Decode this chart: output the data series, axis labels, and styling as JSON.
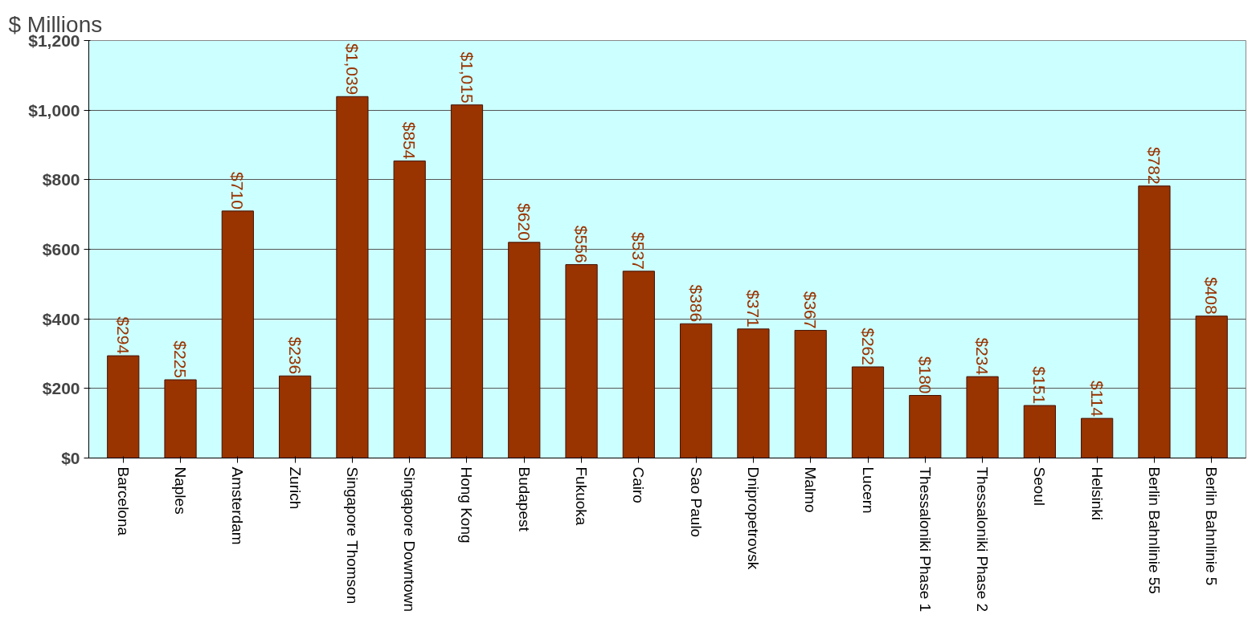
{
  "chart_data": {
    "type": "bar",
    "ylabel": "$ Millions",
    "categories": [
      "Barcelona",
      "Naples",
      "Amsterdam",
      "Zurich",
      "Singapore Thomson",
      "Singapore Downtown",
      "Hong Kong",
      "Budapest",
      "Fukuoka",
      "Cairo",
      "Sao Paulo",
      "Dnipropetrovsk",
      "Malmo",
      "Lucern",
      "Thessaloniki Phase 1",
      "Thessaloniki Phase 2",
      "Seoul",
      "Helsinki",
      "Berlin Bahnlinie 55",
      "Berlin Bahnlinie 5"
    ],
    "values": [
      294,
      225,
      710,
      236,
      1039,
      854,
      1015,
      620,
      556,
      537,
      386,
      371,
      367,
      262,
      180,
      234,
      151,
      114,
      782,
      408
    ],
    "value_labels": [
      "$294",
      "$225",
      "$710",
      "$236",
      "$1,039",
      "$854",
      "$1,015",
      "$620",
      "$556",
      "$537",
      "$386",
      "$371",
      "$367",
      "$262",
      "$180",
      "$234",
      "$151",
      "$114",
      "$782",
      "$408"
    ],
    "color": "#993300",
    "ylim": [
      0,
      1200
    ],
    "yticks": [
      {
        "value": 0,
        "label": "$0"
      },
      {
        "value": 200,
        "label": "$200"
      },
      {
        "value": 400,
        "label": "$400"
      },
      {
        "value": 600,
        "label": "$600"
      },
      {
        "value": 800,
        "label": "$800"
      },
      {
        "value": 1000,
        "label": "$1,000"
      },
      {
        "value": 1200,
        "label": "$1,200"
      }
    ],
    "grid": "y"
  }
}
